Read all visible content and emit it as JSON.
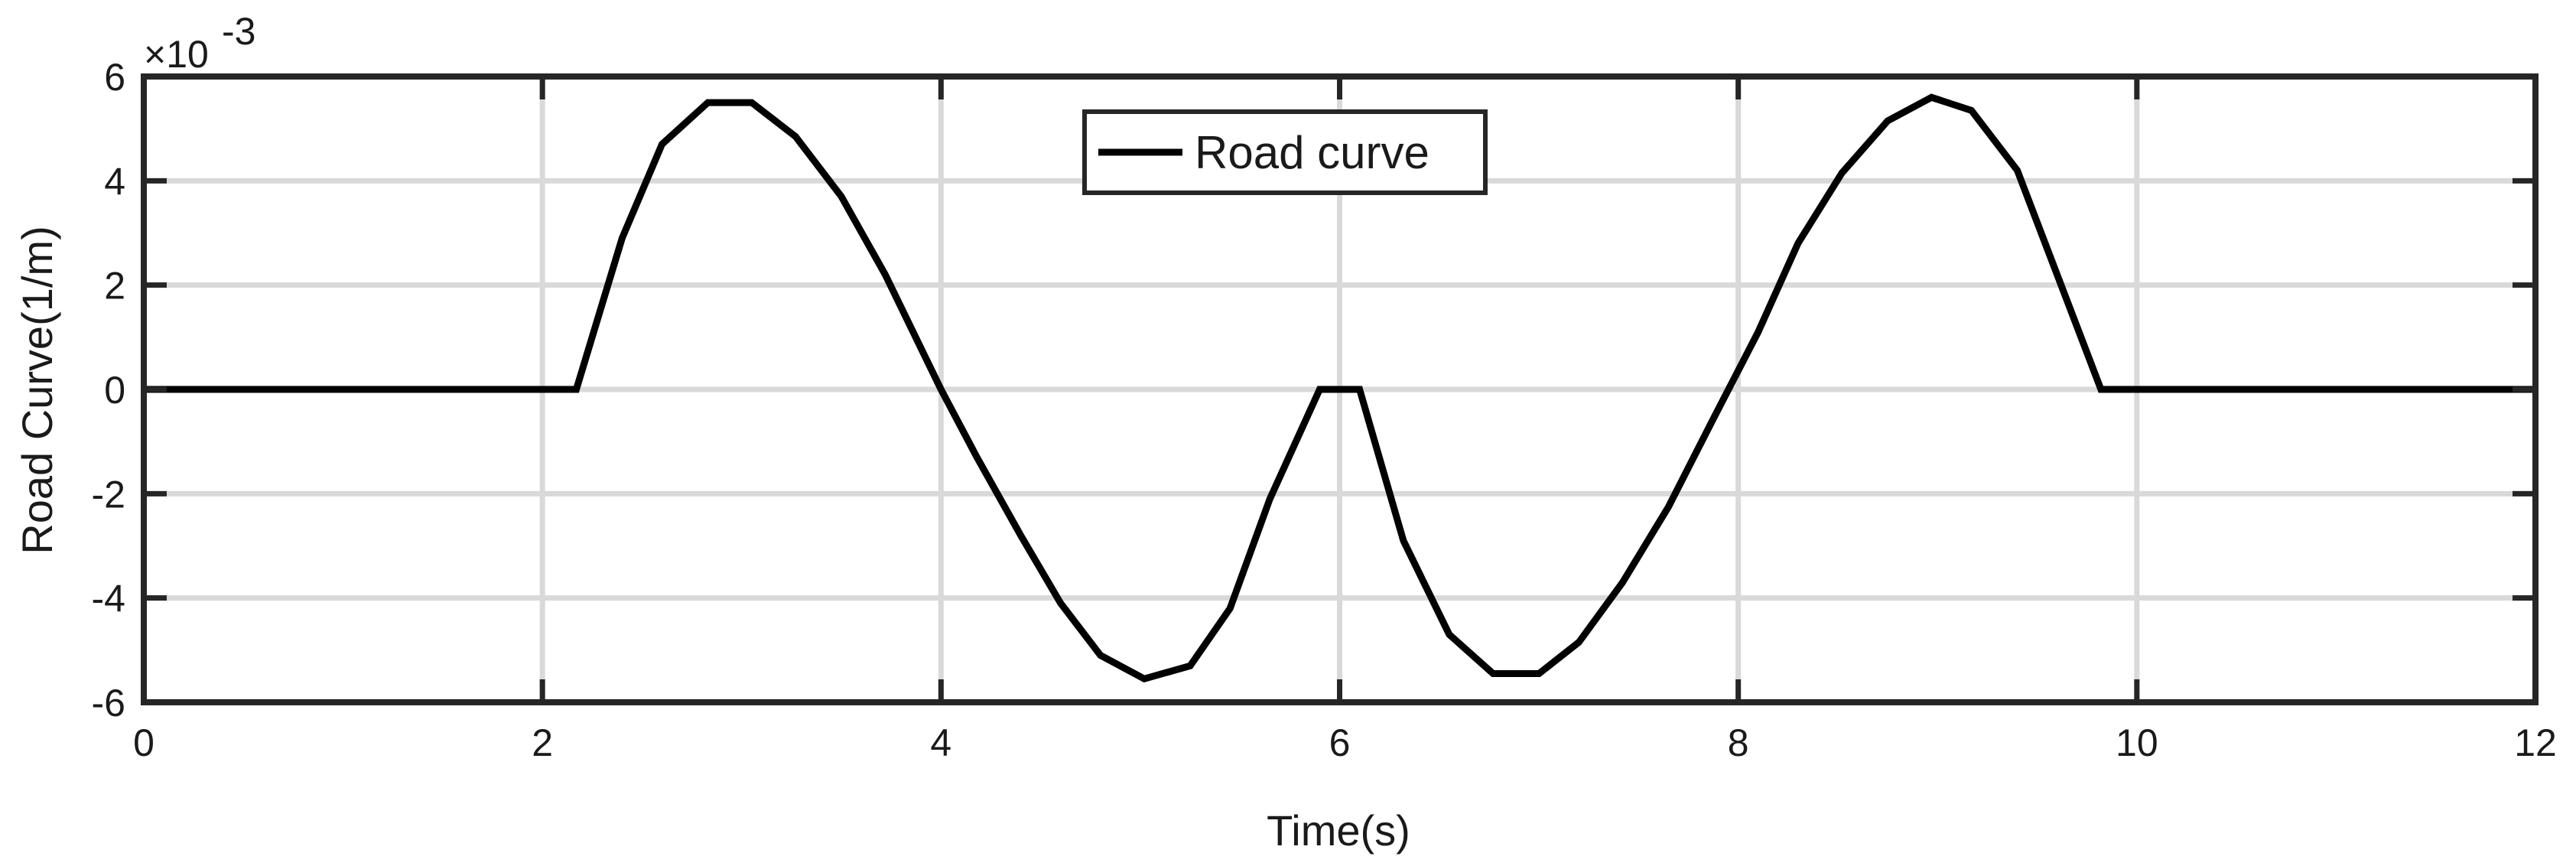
{
  "chart_data": {
    "type": "line",
    "title": "",
    "xlabel": "Time(s)",
    "ylabel": "Road Curve(1/m)",
    "y_multiplier_label": "×10",
    "y_multiplier_exponent": "-3",
    "xlim": [
      0,
      12
    ],
    "ylim": [
      -6,
      6
    ],
    "x_ticks": [
      0,
      2,
      4,
      6,
      8,
      10,
      12
    ],
    "y_ticks": [
      -6,
      -4,
      -2,
      0,
      2,
      4,
      6
    ],
    "grid": true,
    "legend": {
      "position": "top-center"
    },
    "series": [
      {
        "name": "Road curve",
        "color": "#000000",
        "points": [
          [
            0,
            0
          ],
          [
            2.17,
            0
          ],
          [
            2.4,
            2.9
          ],
          [
            2.6,
            4.7
          ],
          [
            2.83,
            5.5
          ],
          [
            3.05,
            5.5
          ],
          [
            3.27,
            4.85
          ],
          [
            3.5,
            3.7
          ],
          [
            3.72,
            2.2
          ],
          [
            4.0,
            0
          ],
          [
            4.18,
            -1.3
          ],
          [
            4.4,
            -2.8
          ],
          [
            4.6,
            -4.1
          ],
          [
            4.8,
            -5.1
          ],
          [
            5.02,
            -5.55
          ],
          [
            5.25,
            -5.3
          ],
          [
            5.45,
            -4.2
          ],
          [
            5.65,
            -2.1
          ],
          [
            5.9,
            0
          ],
          [
            6.1,
            0
          ],
          [
            6.32,
            -2.9
          ],
          [
            6.55,
            -4.7
          ],
          [
            6.77,
            -5.45
          ],
          [
            7.0,
            -5.45
          ],
          [
            7.2,
            -4.85
          ],
          [
            7.42,
            -3.7
          ],
          [
            7.65,
            -2.25
          ],
          [
            7.87,
            -0.6
          ],
          [
            8.1,
            1.1
          ],
          [
            8.3,
            2.8
          ],
          [
            8.52,
            4.15
          ],
          [
            8.75,
            5.15
          ],
          [
            8.97,
            5.6
          ],
          [
            9.17,
            5.35
          ],
          [
            9.4,
            4.2
          ],
          [
            9.6,
            2.2
          ],
          [
            9.82,
            0
          ],
          [
            12,
            0
          ]
        ]
      }
    ]
  }
}
